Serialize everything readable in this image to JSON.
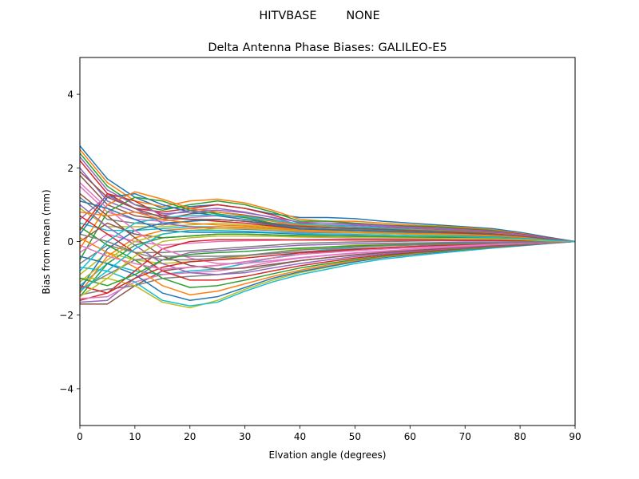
{
  "suptitle": "HITVBASE        NONE",
  "chart_data": {
    "type": "line",
    "title": "Delta Antenna Phase Biases: GALILEO-E5",
    "xlabel": "Elvation angle (degrees)",
    "ylabel": "Bias from mean (mm)",
    "xlim": [
      0,
      90
    ],
    "ylim": [
      -5,
      5
    ],
    "xticks": [
      0,
      10,
      20,
      30,
      40,
      50,
      60,
      70,
      80,
      90
    ],
    "xtick_labels": [
      "0",
      "10",
      "20",
      "30",
      "40",
      "50",
      "60",
      "70",
      "80",
      "90"
    ],
    "yticks": [
      -4,
      -2,
      0,
      2,
      4
    ],
    "ytick_labels": [
      "−4",
      "−2",
      "0",
      "2",
      "4"
    ],
    "grid": false,
    "legend": "none",
    "palette": [
      "#1f77b4",
      "#ff7f0e",
      "#2ca02c",
      "#d62728",
      "#9467bd",
      "#8c564b",
      "#e377c2",
      "#7f7f7f",
      "#bcbd22",
      "#17becf"
    ],
    "x": [
      0,
      5,
      10,
      15,
      20,
      25,
      30,
      35,
      40,
      45,
      50,
      55,
      60,
      65,
      70,
      75,
      80,
      85,
      90
    ],
    "series": [
      {
        "values": [
          2.6,
          1.7,
          1.2,
          0.9,
          0.95,
          1.0,
          0.9,
          0.75,
          0.65,
          0.65,
          0.62,
          0.55,
          0.5,
          0.45,
          0.4,
          0.35,
          0.25,
          0.12,
          0
        ]
      },
      {
        "values": [
          2.5,
          1.6,
          1.1,
          0.95,
          1.1,
          1.15,
          1.05,
          0.85,
          0.6,
          0.55,
          0.55,
          0.5,
          0.45,
          0.42,
          0.38,
          0.32,
          0.22,
          0.1,
          0
        ]
      },
      {
        "values": [
          2.4,
          1.5,
          1.0,
          0.85,
          1.0,
          1.1,
          1.0,
          0.8,
          0.55,
          0.55,
          0.5,
          0.45,
          0.42,
          0.4,
          0.35,
          0.3,
          0.2,
          0.1,
          0
        ]
      },
      {
        "values": [
          2.2,
          1.3,
          0.9,
          0.8,
          0.9,
          1.0,
          0.9,
          0.72,
          0.5,
          0.5,
          0.48,
          0.44,
          0.4,
          0.37,
          0.33,
          0.28,
          0.2,
          0.1,
          0
        ]
      },
      {
        "values": [
          2.0,
          1.1,
          0.8,
          0.7,
          0.85,
          0.9,
          0.8,
          0.65,
          0.45,
          0.45,
          0.44,
          0.4,
          0.37,
          0.34,
          0.3,
          0.26,
          0.18,
          0.09,
          0
        ]
      },
      {
        "values": [
          1.8,
          1.0,
          0.7,
          0.6,
          0.75,
          0.8,
          0.72,
          0.6,
          0.42,
          0.42,
          0.4,
          0.37,
          0.34,
          0.31,
          0.28,
          0.24,
          0.17,
          0.08,
          0
        ]
      },
      {
        "values": [
          1.5,
          0.8,
          0.6,
          0.55,
          0.65,
          0.7,
          0.65,
          0.55,
          0.4,
          0.38,
          0.36,
          0.34,
          0.31,
          0.29,
          0.26,
          0.22,
          0.16,
          0.08,
          0
        ]
      },
      {
        "values": [
          1.2,
          0.6,
          0.5,
          0.45,
          0.55,
          0.6,
          0.55,
          0.48,
          0.36,
          0.34,
          0.33,
          0.31,
          0.29,
          0.27,
          0.24,
          0.2,
          0.15,
          0.07,
          0
        ]
      },
      {
        "values": [
          0.9,
          0.4,
          0.4,
          0.4,
          0.45,
          0.5,
          0.45,
          0.4,
          0.32,
          0.3,
          0.3,
          0.28,
          0.26,
          0.24,
          0.22,
          0.18,
          0.13,
          0.07,
          0
        ]
      },
      {
        "values": [
          0.5,
          0.3,
          0.3,
          0.35,
          0.4,
          0.4,
          0.38,
          0.34,
          0.28,
          0.27,
          0.26,
          0.25,
          0.23,
          0.22,
          0.2,
          0.17,
          0.12,
          0.06,
          0
        ]
      },
      {
        "values": [
          0.2,
          1.2,
          1.3,
          1.0,
          0.8,
          0.7,
          0.6,
          0.5,
          0.4,
          0.38,
          0.35,
          0.33,
          0.3,
          0.28,
          0.25,
          0.21,
          0.15,
          0.07,
          0
        ]
      },
      {
        "values": [
          -0.2,
          1.0,
          1.35,
          1.15,
          0.9,
          0.8,
          0.7,
          0.55,
          0.45,
          0.42,
          0.4,
          0.36,
          0.33,
          0.3,
          0.27,
          0.22,
          0.16,
          0.08,
          0
        ]
      },
      {
        "values": [
          -0.5,
          0.8,
          1.2,
          1.1,
          0.85,
          0.75,
          0.65,
          0.5,
          0.4,
          0.38,
          0.36,
          0.33,
          0.3,
          0.28,
          0.25,
          0.2,
          0.15,
          0.07,
          0
        ]
      },
      {
        "values": [
          0.3,
          1.3,
          1.1,
          0.7,
          0.6,
          0.55,
          0.5,
          0.42,
          0.34,
          0.32,
          0.3,
          0.28,
          0.26,
          0.24,
          0.22,
          0.18,
          0.13,
          0.06,
          0
        ]
      },
      {
        "values": [
          0.6,
          1.25,
          0.9,
          0.5,
          0.4,
          0.35,
          0.33,
          0.3,
          0.25,
          0.24,
          0.23,
          0.22,
          0.2,
          0.19,
          0.17,
          0.15,
          0.11,
          0.05,
          0
        ]
      },
      {
        "values": [
          0.0,
          0.5,
          0.2,
          0.1,
          0.15,
          0.2,
          0.2,
          0.18,
          0.15,
          0.15,
          0.14,
          0.13,
          0.12,
          0.12,
          0.11,
          0.1,
          0.08,
          0.04,
          0
        ]
      },
      {
        "values": [
          -0.3,
          0.2,
          0.0,
          -0.1,
          -0.05,
          0.0,
          0.02,
          0.03,
          0.05,
          0.06,
          0.07,
          0.07,
          0.07,
          0.07,
          0.06,
          0.06,
          0.05,
          0.03,
          0
        ]
      },
      {
        "values": [
          -0.6,
          -0.1,
          -0.3,
          -0.3,
          -0.25,
          -0.2,
          -0.15,
          -0.1,
          -0.05,
          -0.03,
          -0.01,
          0.0,
          0.01,
          0.02,
          0.02,
          0.02,
          0.02,
          0.01,
          0
        ]
      },
      {
        "values": [
          -0.9,
          -0.3,
          -0.5,
          -0.6,
          -0.55,
          -0.5,
          -0.4,
          -0.3,
          -0.2,
          -0.15,
          -0.1,
          -0.08,
          -0.06,
          -0.04,
          -0.03,
          -0.02,
          -0.01,
          0.0,
          0
        ]
      },
      {
        "values": [
          -1.2,
          -0.6,
          -0.8,
          -0.9,
          -0.8,
          -0.75,
          -0.6,
          -0.45,
          -0.3,
          -0.22,
          -0.16,
          -0.12,
          -0.09,
          -0.07,
          -0.05,
          -0.04,
          -0.03,
          -0.01,
          0
        ]
      },
      {
        "values": [
          -1.3,
          -0.2,
          0.3,
          0.5,
          0.55,
          0.6,
          0.55,
          0.45,
          0.35,
          0.32,
          0.3,
          0.28,
          0.25,
          0.23,
          0.2,
          0.17,
          0.12,
          0.06,
          0
        ]
      },
      {
        "values": [
          -1.4,
          -0.4,
          0.1,
          0.3,
          0.35,
          0.4,
          0.38,
          0.33,
          0.28,
          0.26,
          0.24,
          0.22,
          0.2,
          0.19,
          0.17,
          0.14,
          0.1,
          0.05,
          0
        ]
      },
      {
        "values": [
          -1.5,
          -0.6,
          -0.1,
          0.1,
          0.15,
          0.2,
          0.2,
          0.18,
          0.16,
          0.15,
          0.14,
          0.13,
          0.12,
          0.11,
          0.1,
          0.09,
          0.07,
          0.03,
          0
        ]
      },
      {
        "values": [
          -1.6,
          -1.4,
          -0.8,
          -0.2,
          0.0,
          0.05,
          0.05,
          0.05,
          0.04,
          0.04,
          0.04,
          0.04,
          0.04,
          0.04,
          0.03,
          0.03,
          0.02,
          0.01,
          0
        ]
      },
      {
        "values": [
          -1.65,
          -1.6,
          -1.0,
          -0.5,
          -0.3,
          -0.25,
          -0.2,
          -0.15,
          -0.1,
          -0.08,
          -0.06,
          -0.05,
          -0.04,
          -0.03,
          -0.02,
          -0.02,
          -0.01,
          0.0,
          0
        ]
      },
      {
        "values": [
          -1.7,
          -1.7,
          -1.2,
          -0.8,
          -0.7,
          -0.65,
          -0.55,
          -0.45,
          -0.35,
          -0.28,
          -0.22,
          -0.18,
          -0.14,
          -0.11,
          -0.08,
          -0.06,
          -0.04,
          -0.02,
          0
        ]
      },
      {
        "values": [
          -1.55,
          -1.5,
          -1.1,
          -0.9,
          -0.85,
          -0.8,
          -0.7,
          -0.55,
          -0.45,
          -0.38,
          -0.32,
          -0.27,
          -0.22,
          -0.18,
          -0.14,
          -0.1,
          -0.07,
          -0.03,
          0
        ]
      },
      {
        "values": [
          -1.45,
          -1.3,
          -1.2,
          -1.0,
          -0.95,
          -0.9,
          -0.8,
          -0.65,
          -0.52,
          -0.44,
          -0.37,
          -0.31,
          -0.26,
          -0.21,
          -0.16,
          -0.12,
          -0.08,
          -0.04,
          0
        ]
      },
      {
        "values": [
          -1.0,
          -1.0,
          -1.2,
          -1.65,
          -1.8,
          -1.6,
          -1.3,
          -1.05,
          -0.85,
          -0.7,
          -0.55,
          -0.42,
          -0.35,
          -0.28,
          -0.22,
          -0.16,
          -0.11,
          -0.05,
          0
        ]
      },
      {
        "values": [
          -0.7,
          -0.8,
          -1.1,
          -1.6,
          -1.75,
          -1.65,
          -1.35,
          -1.1,
          -0.9,
          -0.75,
          -0.6,
          -0.48,
          -0.4,
          -0.32,
          -0.25,
          -0.18,
          -0.12,
          -0.06,
          0
        ]
      },
      {
        "values": [
          -0.4,
          -0.6,
          -0.9,
          -1.4,
          -1.6,
          -1.5,
          -1.25,
          -1.0,
          -0.82,
          -0.68,
          -0.55,
          -0.44,
          -0.36,
          -0.29,
          -0.22,
          -0.16,
          -0.11,
          -0.05,
          0
        ]
      },
      {
        "values": [
          0.1,
          -0.3,
          -0.7,
          -1.2,
          -1.45,
          -1.35,
          -1.15,
          -0.95,
          -0.78,
          -0.64,
          -0.52,
          -0.42,
          -0.34,
          -0.27,
          -0.21,
          -0.15,
          -0.1,
          -0.05,
          0
        ]
      },
      {
        "values": [
          0.4,
          -0.1,
          -0.5,
          -1.0,
          -1.25,
          -1.2,
          -1.05,
          -0.88,
          -0.72,
          -0.6,
          -0.49,
          -0.4,
          -0.32,
          -0.26,
          -0.2,
          -0.14,
          -0.1,
          -0.05,
          0
        ]
      },
      {
        "values": [
          0.7,
          0.2,
          -0.3,
          -0.8,
          -1.05,
          -1.05,
          -0.95,
          -0.8,
          -0.66,
          -0.55,
          -0.45,
          -0.37,
          -0.3,
          -0.24,
          -0.18,
          -0.13,
          -0.09,
          -0.04,
          0
        ]
      },
      {
        "values": [
          1.0,
          0.4,
          -0.1,
          -0.6,
          -0.85,
          -0.9,
          -0.85,
          -0.72,
          -0.6,
          -0.5,
          -0.41,
          -0.34,
          -0.28,
          -0.22,
          -0.17,
          -0.12,
          -0.08,
          -0.04,
          0
        ]
      },
      {
        "values": [
          1.3,
          0.7,
          0.1,
          -0.4,
          -0.65,
          -0.75,
          -0.72,
          -0.62,
          -0.52,
          -0.44,
          -0.36,
          -0.3,
          -0.25,
          -0.2,
          -0.15,
          -0.11,
          -0.07,
          -0.03,
          0
        ]
      },
      {
        "values": [
          1.6,
          0.9,
          0.3,
          -0.2,
          -0.45,
          -0.6,
          -0.6,
          -0.52,
          -0.44,
          -0.37,
          -0.31,
          -0.26,
          -0.21,
          -0.17,
          -0.13,
          -0.09,
          -0.06,
          -0.03,
          0
        ]
      },
      {
        "values": [
          -1.3,
          -0.9,
          -0.5,
          -0.4,
          -0.4,
          -0.4,
          -0.38,
          -0.33,
          -0.28,
          -0.24,
          -0.2,
          -0.17,
          -0.14,
          -0.11,
          -0.09,
          -0.07,
          -0.05,
          -0.02,
          0
        ]
      },
      {
        "values": [
          -1.1,
          -0.5,
          0.0,
          0.2,
          0.3,
          0.35,
          0.35,
          0.32,
          0.28,
          0.26,
          0.24,
          0.22,
          0.2,
          0.18,
          0.16,
          0.13,
          0.1,
          0.05,
          0
        ]
      },
      {
        "values": [
          -0.8,
          0.0,
          0.5,
          0.65,
          0.7,
          0.72,
          0.68,
          0.58,
          0.48,
          0.44,
          0.4,
          0.36,
          0.32,
          0.29,
          0.26,
          0.21,
          0.15,
          0.07,
          0
        ]
      },
      {
        "values": [
          1.1,
          0.9,
          0.6,
          0.3,
          0.25,
          0.25,
          0.25,
          0.23,
          0.2,
          0.19,
          0.18,
          0.17,
          0.16,
          0.15,
          0.14,
          0.12,
          0.09,
          0.04,
          0
        ]
      },
      {
        "values": [
          0.8,
          0.7,
          0.8,
          0.6,
          0.5,
          0.45,
          0.42,
          0.37,
          0.3,
          0.28,
          0.26,
          0.24,
          0.22,
          0.21,
          0.19,
          0.16,
          0.12,
          0.06,
          0
        ]
      },
      {
        "values": [
          -1.0,
          -1.2,
          -0.9,
          -0.5,
          -0.35,
          -0.3,
          -0.27,
          -0.22,
          -0.18,
          -0.15,
          -0.12,
          -0.1,
          -0.08,
          -0.06,
          -0.05,
          -0.04,
          -0.03,
          -0.01,
          0
        ]
      },
      {
        "values": [
          -1.2,
          -1.4,
          -1.0,
          -0.7,
          -0.55,
          -0.5,
          -0.45,
          -0.38,
          -0.31,
          -0.26,
          -0.21,
          -0.17,
          -0.14,
          -0.11,
          -0.09,
          -0.07,
          -0.05,
          -0.02,
          0
        ]
      },
      {
        "values": [
          2.3,
          1.4,
          1.0,
          0.75,
          0.8,
          0.85,
          0.78,
          0.66,
          0.52,
          0.5,
          0.47,
          0.43,
          0.39,
          0.36,
          0.32,
          0.27,
          0.19,
          0.09,
          0
        ]
      },
      {
        "values": [
          1.9,
          1.2,
          0.9,
          0.65,
          0.6,
          0.6,
          0.55,
          0.48,
          0.4,
          0.38,
          0.36,
          0.33,
          0.3,
          0.28,
          0.25,
          0.21,
          0.15,
          0.07,
          0
        ]
      },
      {
        "values": [
          -0.1,
          -0.4,
          -0.6,
          -0.75,
          -0.7,
          -0.65,
          -0.55,
          -0.45,
          -0.35,
          -0.3,
          -0.25,
          -0.21,
          -0.17,
          -0.14,
          -0.11,
          -0.08,
          -0.05,
          -0.02,
          0
        ]
      },
      {
        "values": [
          0.2,
          0.0,
          -0.3,
          -0.5,
          -0.5,
          -0.45,
          -0.38,
          -0.3,
          -0.23,
          -0.19,
          -0.15,
          -0.12,
          -0.1,
          -0.08,
          -0.06,
          -0.04,
          -0.03,
          -0.01,
          0
        ]
      },
      {
        "values": [
          -1.5,
          -1.0,
          -0.4,
          0.0,
          0.1,
          0.15,
          0.15,
          0.14,
          0.12,
          0.11,
          0.1,
          0.1,
          0.09,
          0.08,
          0.08,
          0.07,
          0.05,
          0.02,
          0
        ]
      },
      {
        "values": [
          -1.35,
          -0.8,
          -0.2,
          0.2,
          0.3,
          0.3,
          0.28,
          0.25,
          0.22,
          0.2,
          0.19,
          0.18,
          0.16,
          0.15,
          0.13,
          0.11,
          0.08,
          0.04,
          0
        ]
      }
    ]
  }
}
